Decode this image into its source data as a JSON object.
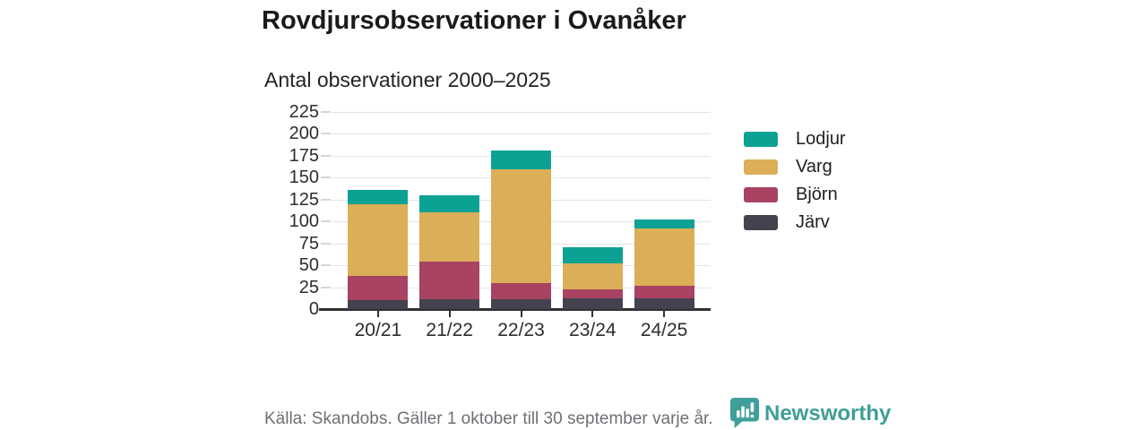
{
  "header": {
    "title": "Rovdjursobservationer i Ovanåker",
    "subtitle": "Antal observationer 2000–2025"
  },
  "chart_data": {
    "type": "bar",
    "stacked": true,
    "title": "Rovdjursobservationer i Ovanåker",
    "subtitle": "Antal observationer 2000–2025",
    "categories": [
      "20/21",
      "21/22",
      "22/23",
      "23/24",
      "24/25"
    ],
    "series": [
      {
        "name": "Järv",
        "color": "#454250",
        "values": [
          10,
          11,
          11,
          12,
          12
        ]
      },
      {
        "name": "Björn",
        "color": "#A84361",
        "values": [
          28,
          43,
          19,
          10,
          15
        ]
      },
      {
        "name": "Varg",
        "color": "#DBAE58",
        "values": [
          82,
          56,
          130,
          30,
          65
        ]
      },
      {
        "name": "Lodjur",
        "color": "#0CA293",
        "values": [
          16,
          20,
          21,
          19,
          10
        ]
      }
    ],
    "stack_order": "bottom-to-top",
    "totals": [
      136,
      130,
      181,
      71,
      102
    ],
    "legend": [
      "Lodjur",
      "Varg",
      "Björn",
      "Järv"
    ],
    "legend_position": "right",
    "yticks": [
      0,
      25,
      50,
      75,
      100,
      125,
      150,
      175,
      200,
      225
    ],
    "ylim": [
      0,
      225
    ],
    "grid": true,
    "xlabel": "",
    "ylabel": ""
  },
  "footer": {
    "source": "Källa: Skandobs. Gäller 1 oktober till 30 september varje år.",
    "brand": "Newsworthy"
  },
  "colors": {
    "brand_teal": "#3FA099",
    "grid": "#E4E4E7",
    "axis": "#303036",
    "footer_text": "#6D7074"
  }
}
